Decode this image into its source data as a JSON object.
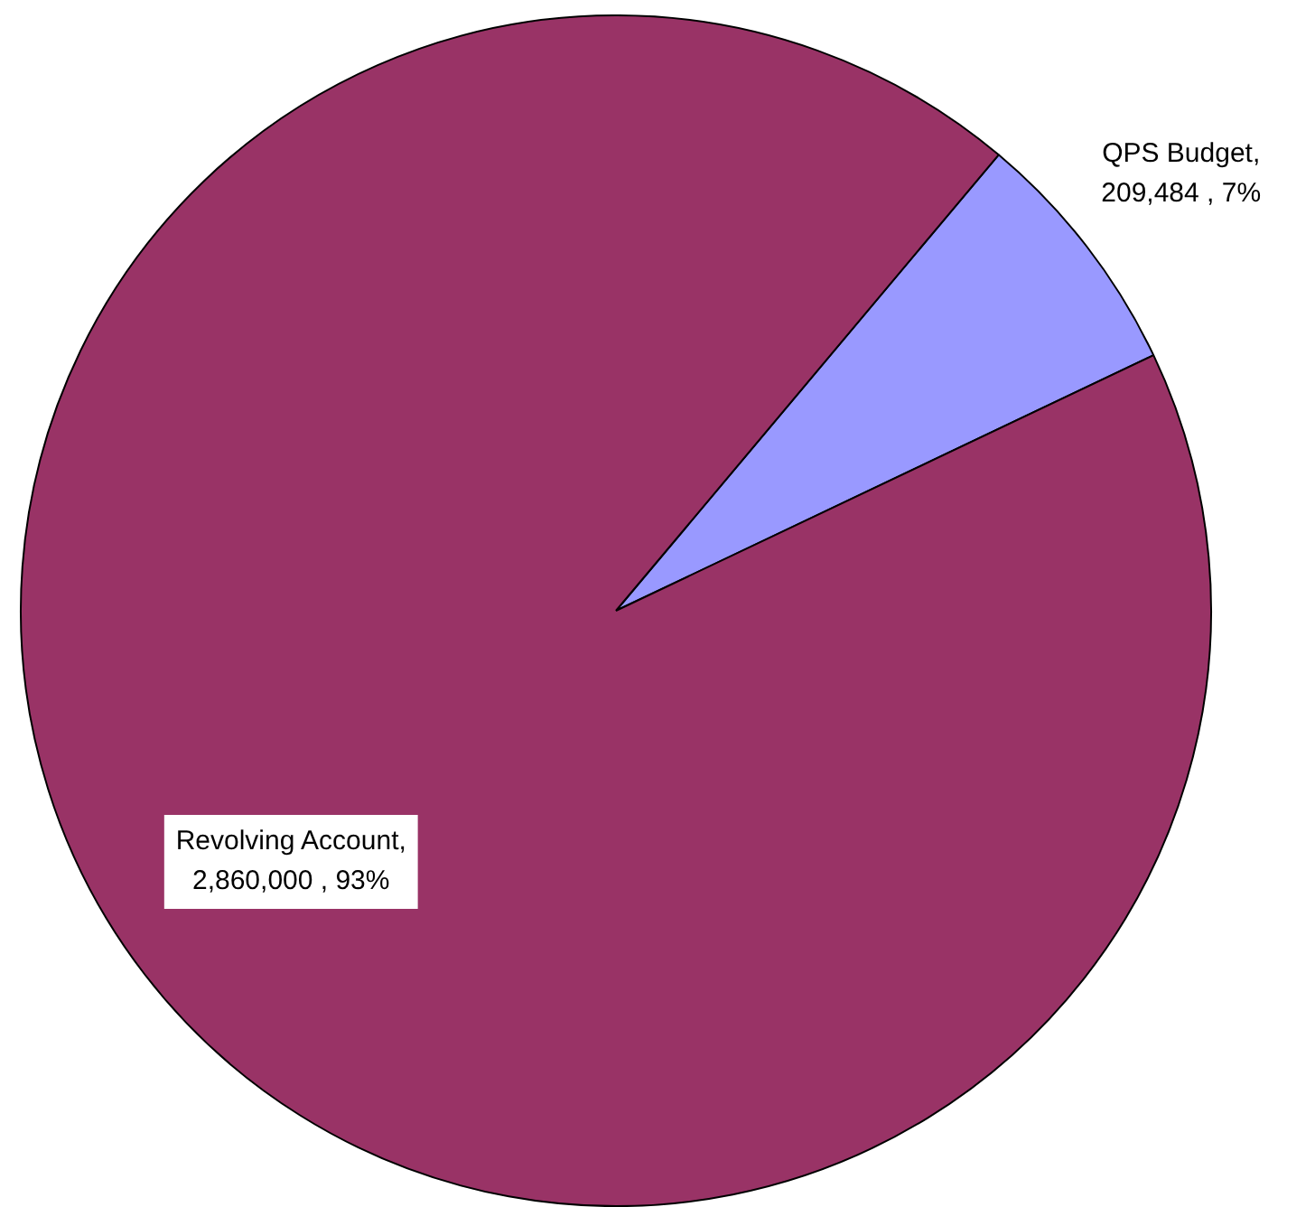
{
  "chart_data": {
    "type": "pie",
    "categories": [
      "QPS Budget",
      "Revolving Account"
    ],
    "values": [
      209484,
      2860000
    ],
    "colors": [
      "#9999ff",
      "#993366"
    ],
    "value_labels": [
      ",\n209,484 , 7%",
      ",\n2,860,000 , 93%"
    ],
    "legend": false
  }
}
